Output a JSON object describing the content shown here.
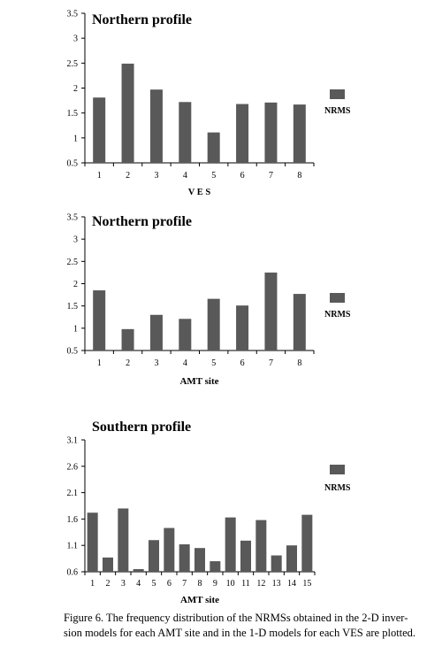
{
  "chart_data": [
    {
      "type": "bar",
      "title": "Northern profile",
      "xlabel": "V E S",
      "ylabel": "",
      "categories": [
        "1",
        "2",
        "3",
        "4",
        "5",
        "6",
        "7",
        "8"
      ],
      "series": [
        {
          "name": "NRMS",
          "values": [
            1.81,
            2.49,
            1.97,
            1.72,
            1.11,
            1.68,
            1.71,
            1.67
          ],
          "color": "#595959"
        }
      ],
      "ylim": [
        0.5,
        3.5
      ],
      "yticks": [
        "0.5",
        "1",
        "1.5",
        "2",
        "2.5",
        "3",
        "3.5"
      ],
      "grid": false,
      "legend": "right"
    },
    {
      "type": "bar",
      "title": "Northern profile",
      "xlabel": "AMT site",
      "ylabel": "",
      "categories": [
        "1",
        "2",
        "3",
        "4",
        "5",
        "6",
        "7",
        "8"
      ],
      "series": [
        {
          "name": "NRMS",
          "values": [
            1.85,
            0.98,
            1.3,
            1.21,
            1.66,
            1.51,
            2.25,
            1.77
          ],
          "color": "#595959"
        }
      ],
      "ylim": [
        0.5,
        3.5
      ],
      "yticks": [
        "0.5",
        "1",
        "1.5",
        "2",
        "2.5",
        "3",
        "3.5"
      ],
      "grid": false,
      "legend": "right"
    },
    {
      "type": "bar",
      "title": "Southern profile",
      "xlabel": "AMT site",
      "ylabel": "",
      "categories": [
        "1",
        "2",
        "3",
        "4",
        "5",
        "6",
        "7",
        "8",
        "9",
        "10",
        "11",
        "12",
        "13",
        "14",
        "15"
      ],
      "series": [
        {
          "name": "NRMS",
          "values": [
            1.72,
            0.87,
            1.8,
            0.65,
            1.2,
            1.43,
            1.12,
            1.05,
            0.8,
            1.63,
            1.19,
            1.58,
            0.91,
            1.1,
            1.68
          ],
          "color": "#595959"
        }
      ],
      "ylim": [
        0.6,
        3.1
      ],
      "yticks": [
        "0.6",
        "1.1",
        "1.6",
        "2.1",
        "2.6",
        "3.1"
      ],
      "grid": false,
      "legend": "right"
    }
  ],
  "caption": "Figure 6. The frequency distribution of the NRMSs obtained in the 2-D inver-sion models for each AMT site and in the 1-D models for each VES are plotted."
}
